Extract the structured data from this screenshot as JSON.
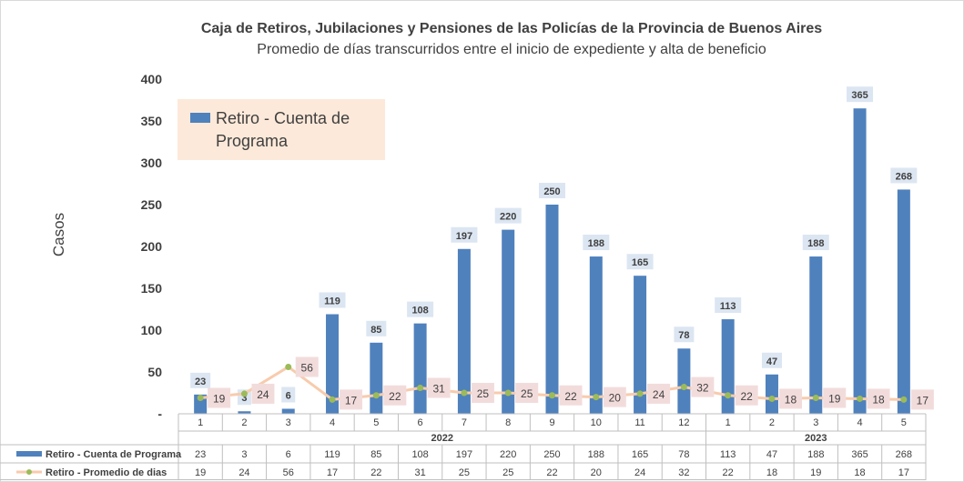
{
  "chart_data": {
    "type": "bar",
    "title": "Caja de Retiros, Jubilaciones y Pensiones de las Policías de la Provincia de Buenos Aires",
    "subtitle": "Promedio de días transcurridos entre el inicio de expediente y alta de beneficio",
    "ylabel": "Casos",
    "ylim": [
      0,
      400
    ],
    "yticks": [
      "-",
      "50",
      "100",
      "150",
      "200",
      "250",
      "300",
      "350",
      "400"
    ],
    "categories": [
      "1",
      "2",
      "3",
      "4",
      "5",
      "6",
      "7",
      "8",
      "9",
      "10",
      "11",
      "12",
      "1",
      "2",
      "3",
      "4",
      "5"
    ],
    "year_groups": [
      {
        "label": "2022",
        "count": 12
      },
      {
        "label": "2023",
        "count": 5
      }
    ],
    "legend": {
      "items": [
        "Retiro - Cuenta de",
        "Programa"
      ],
      "placement": "top-left"
    },
    "series": [
      {
        "name": "Retiro - Cuenta de Programa",
        "type": "bar",
        "color": "#4f81bd",
        "values": [
          23,
          3,
          6,
          119,
          85,
          108,
          197,
          220,
          250,
          188,
          165,
          78,
          113,
          47,
          188,
          365,
          268
        ]
      },
      {
        "name": "Retiro - Promedio de dias",
        "type": "line",
        "color": "#f8cbad",
        "marker_color": "#9bbb59",
        "values": [
          19,
          24,
          56,
          17,
          22,
          31,
          25,
          25,
          22,
          20,
          24,
          32,
          22,
          18,
          19,
          18,
          17
        ]
      }
    ],
    "grid": false
  }
}
